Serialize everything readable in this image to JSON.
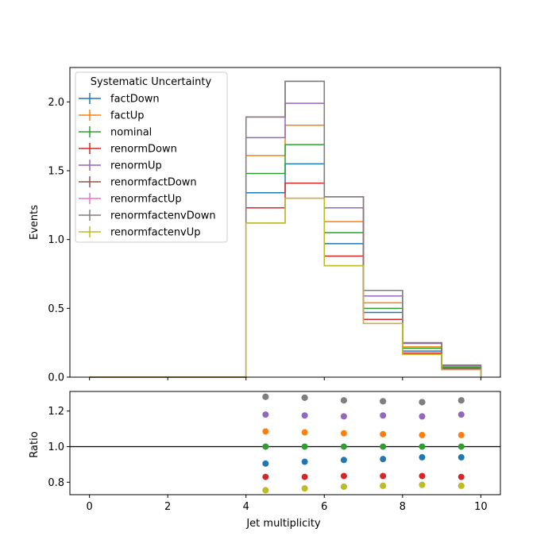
{
  "chart_data": {
    "type": "line",
    "bin_edges": [
      0,
      1,
      2,
      3,
      4,
      5,
      6,
      7,
      8,
      9,
      10
    ],
    "xlabel": "Jet multiplicity",
    "main_panel": {
      "ylabel": "Events",
      "ylim": [
        0,
        2.25
      ],
      "yticks": [
        "0.0",
        "0.5",
        "1.0",
        "1.5",
        "2.0"
      ],
      "draw_style": "step",
      "legend": {
        "title": "Systematic Uncertainty",
        "position": "top-left"
      },
      "series": [
        {
          "name": "factDown",
          "color": "#1f77b4",
          "values": [
            0,
            0,
            0,
            0,
            1.34,
            1.55,
            0.97,
            0.47,
            0.19,
            0.065
          ]
        },
        {
          "name": "factUp",
          "color": "#ff7f0e",
          "values": [
            0,
            0,
            0,
            0,
            1.61,
            1.83,
            1.13,
            0.54,
            0.22,
            0.075
          ]
        },
        {
          "name": "nominal",
          "color": "#2ca02c",
          "values": [
            0,
            0,
            0,
            0,
            1.48,
            1.69,
            1.05,
            0.5,
            0.21,
            0.07
          ]
        },
        {
          "name": "renormDown",
          "color": "#d62728",
          "values": [
            0,
            0,
            0,
            0,
            1.23,
            1.41,
            0.88,
            0.42,
            0.175,
            0.058
          ]
        },
        {
          "name": "renormUp",
          "color": "#9467bd",
          "values": [
            0,
            0,
            0,
            0,
            1.74,
            1.99,
            1.23,
            0.59,
            0.245,
            0.083
          ]
        },
        {
          "name": "renormfactDown",
          "color": "#8c564b",
          "values": [
            0,
            0,
            0,
            0,
            1.89,
            2.15,
            1.31,
            0.63,
            0.25,
            0.088
          ]
        },
        {
          "name": "renormfactUp",
          "color": "#e377c2",
          "values": [
            0,
            0,
            0,
            0,
            1.12,
            1.3,
            0.81,
            0.39,
            0.165,
            0.055
          ]
        },
        {
          "name": "renormfactenvDown",
          "color": "#7f7f7f",
          "values": [
            0,
            0,
            0,
            0,
            1.89,
            2.15,
            1.31,
            0.63,
            0.25,
            0.088
          ]
        },
        {
          "name": "renormfactenvUp",
          "color": "#bcbd22",
          "values": [
            0,
            0,
            0,
            0,
            1.12,
            1.3,
            0.81,
            0.39,
            0.165,
            0.055
          ]
        }
      ]
    },
    "ratio_panel": {
      "ylabel": "Ratio",
      "ylim": [
        0.73,
        1.31
      ],
      "yticks": [
        "0.8",
        "1.0",
        "1.2"
      ],
      "reference_line": 1.0,
      "x": [
        4.5,
        5.5,
        6.5,
        7.5,
        8.5,
        9.5
      ],
      "series": [
        {
          "name": "factDown",
          "color": "#1f77b4",
          "values": [
            0.905,
            0.915,
            0.925,
            0.93,
            0.94,
            0.94
          ]
        },
        {
          "name": "factUp",
          "color": "#ff7f0e",
          "values": [
            1.085,
            1.08,
            1.075,
            1.07,
            1.065,
            1.065
          ]
        },
        {
          "name": "nominal",
          "color": "#2ca02c",
          "values": [
            1.0,
            1.0,
            1.0,
            1.0,
            1.0,
            1.0
          ]
        },
        {
          "name": "renormDown",
          "color": "#d62728",
          "values": [
            0.83,
            0.83,
            0.835,
            0.835,
            0.835,
            0.83
          ]
        },
        {
          "name": "renormUp",
          "color": "#9467bd",
          "values": [
            1.18,
            1.175,
            1.17,
            1.175,
            1.17,
            1.18
          ]
        },
        {
          "name": "renormfactDown",
          "color": "#8c564b",
          "values": [
            1.28,
            1.275,
            1.26,
            1.255,
            1.25,
            1.26
          ]
        },
        {
          "name": "renormfactUp",
          "color": "#e377c2",
          "values": [
            0.755,
            0.765,
            0.775,
            0.78,
            0.785,
            0.78
          ]
        },
        {
          "name": "renormfactenvDown",
          "color": "#7f7f7f",
          "values": [
            1.28,
            1.275,
            1.26,
            1.255,
            1.25,
            1.26
          ]
        },
        {
          "name": "renormfactenvUp",
          "color": "#bcbd22",
          "values": [
            0.755,
            0.765,
            0.775,
            0.78,
            0.785,
            0.78
          ]
        }
      ]
    },
    "xticks": [
      "0",
      "2",
      "4",
      "6",
      "8",
      "10"
    ],
    "xlim": [
      -0.5,
      10.5
    ]
  }
}
